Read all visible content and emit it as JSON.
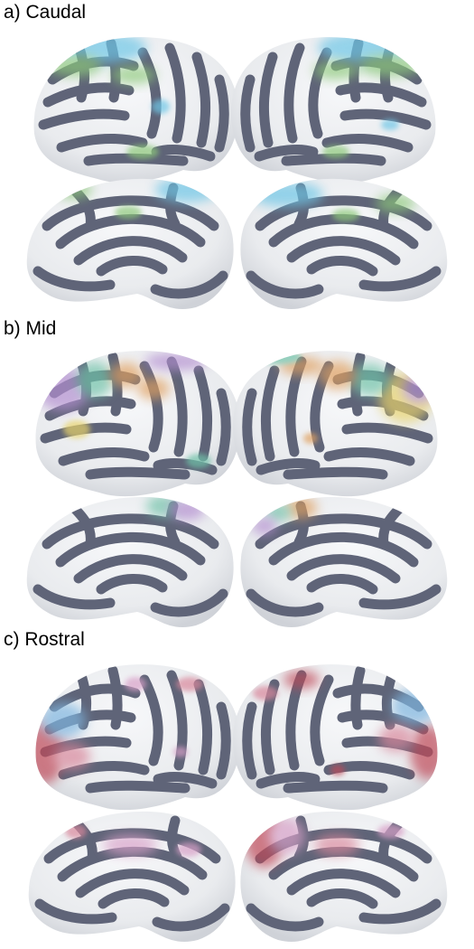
{
  "figure": {
    "panels": [
      {
        "label": "a) Caudal",
        "overlay_colors": [
          "#6ec6e6",
          "#8dc97a"
        ]
      },
      {
        "label": "b) Mid",
        "overlay_colors": [
          "#b48fd0",
          "#e0a060",
          "#e8d36a",
          "#6fc2a8"
        ]
      },
      {
        "label": "c) Rostral",
        "overlay_colors": [
          "#d9879b",
          "#c04a58",
          "#7fb6e0",
          "#d8a0c8"
        ]
      }
    ],
    "colors": {
      "cortex_light": "#eef0f2",
      "sulci_dark": "#5f6478",
      "background": "#ffffff"
    }
  }
}
